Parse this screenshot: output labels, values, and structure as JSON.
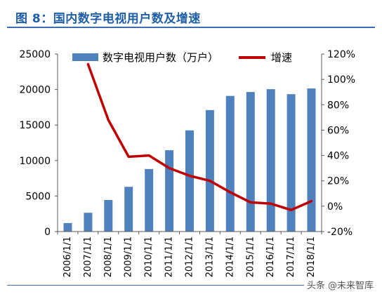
{
  "chart_data": {
    "type": "bar",
    "title": "图 8：国内数字电视用户数及增速",
    "categories": [
      "2006/1/1",
      "2007/1/1",
      "2008/1/1",
      "2009/1/1",
      "2010/1/1",
      "2011/1/1",
      "2012/1/1",
      "2013/1/1",
      "2014/1/1",
      "2015/1/1",
      "2016/1/1",
      "2017/1/1",
      "2018/1/1"
    ],
    "series": [
      {
        "name": "数字电视用户数（万户）",
        "type": "bar",
        "axis": "left",
        "color": "#4f81bd",
        "values": [
          1200,
          2650,
          4450,
          6300,
          8800,
          11450,
          14250,
          17100,
          19100,
          19650,
          20050,
          19350,
          20150
        ]
      },
      {
        "name": "增速",
        "type": "line",
        "axis": "right",
        "color": "#c00000",
        "values": [
          null,
          112,
          68,
          39,
          40,
          30,
          24,
          20,
          11,
          3,
          2,
          -3,
          4
        ]
      }
    ],
    "ylim": [
      0,
      25000
    ],
    "yticks": [
      0,
      5000,
      10000,
      15000,
      20000,
      25000
    ],
    "y2lim": [
      -20,
      120
    ],
    "y2ticks": [
      "-20%",
      "0%",
      "20%",
      "40%",
      "60%",
      "80%",
      "100%",
      "120%"
    ],
    "grid": false,
    "legend": "top"
  },
  "watermark": "头条 @未来智库"
}
